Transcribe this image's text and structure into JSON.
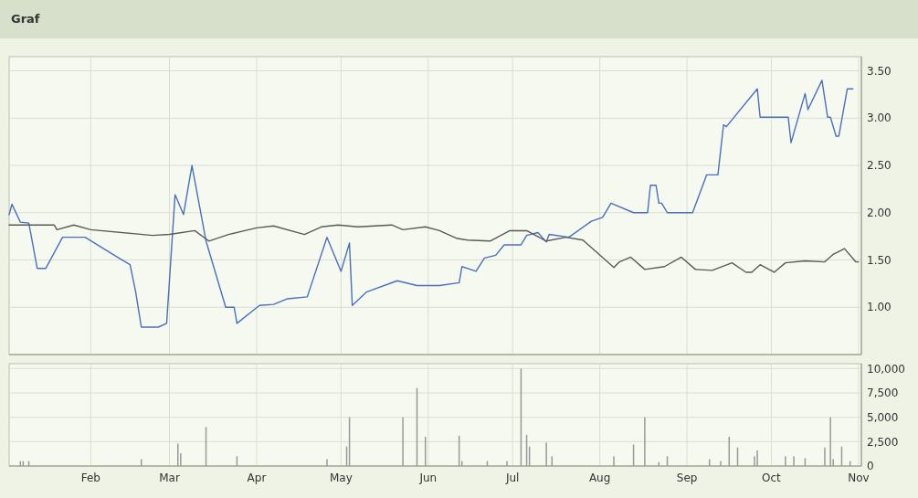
{
  "chart_data": [
    {
      "type": "line",
      "title": "Graf",
      "xlim": [
        "--01-03",
        "--11-02"
      ],
      "ylim": [
        0.5,
        3.65
      ],
      "xticks": [
        {
          "value": "--02-01",
          "label": null
        },
        {
          "value": "--03-01",
          "label": null
        },
        {
          "value": "--04-01",
          "label": null
        },
        {
          "value": "--05-01",
          "label": null
        },
        {
          "value": "--06-01",
          "label": null
        },
        {
          "value": "--07-01",
          "label": null
        },
        {
          "value": "--08-01",
          "label": null
        },
        {
          "value": "--09-01",
          "label": null
        },
        {
          "value": "--10-01",
          "label": null
        },
        {
          "value": "--11-01",
          "label": null
        }
      ],
      "yticks": [
        {
          "value": 1,
          "label": "1.00"
        },
        {
          "value": 1.5,
          "label": "1.50"
        },
        {
          "value": 2,
          "label": "2.00"
        },
        {
          "value": 2.5,
          "label": "2.50"
        },
        {
          "value": 3,
          "label": "3.00"
        },
        {
          "value": 3.5,
          "label": "3.50"
        }
      ],
      "tick_labels": "y",
      "grid": true,
      "series": [
        {
          "color": "#4a6fc0",
          "x": [
            "--01-03",
            "--01-04",
            "--01-07",
            "--01-10",
            "--01-13",
            "--01-16",
            "--01-22",
            "--01-30",
            "--02-11",
            "--02-15",
            "--02-17",
            "--02-19",
            "--02-25",
            "--02-28",
            "--03-03",
            "--03-06",
            "--03-09",
            "--03-14",
            "--03-21",
            "--03-24",
            "--03-25",
            "--04-02",
            "--04-07",
            "--04-12",
            "--04-19",
            "--04-26",
            "--05-01",
            "--05-04",
            "--05-05",
            "--05-10",
            "--05-21",
            "--05-28",
            "--06-05",
            "--06-12",
            "--06-13",
            "--06-18",
            "--06-21",
            "--06-25",
            "--06-28",
            "--07-04",
            "--07-06",
            "--07-10",
            "--07-13",
            "--07-14",
            "--07-21",
            "--07-29",
            "--08-02",
            "--08-05",
            "--08-13",
            "--08-18",
            "--08-19",
            "--08-21",
            "--08-22",
            "--08-23",
            "--08-25",
            "--09-03",
            "--09-08",
            "--09-12",
            "--09-14",
            "--09-15",
            "--09-26",
            "--09-27",
            "--10-07",
            "--10-08",
            "--10-13",
            "--10-14",
            "--10-19",
            "--10-21",
            "--10-22",
            "--10-24",
            "--10-25",
            "--10-28",
            "--10-30"
          ],
          "values": [
            1.98,
            2.09,
            1.9,
            1.89,
            1.41,
            1.41,
            1.74,
            1.74,
            1.52,
            1.45,
            1.16,
            0.79,
            0.79,
            0.83,
            2.19,
            1.98,
            2.5,
            1.7,
            1.0,
            1.0,
            0.83,
            1.02,
            1.03,
            1.09,
            1.11,
            1.74,
            1.38,
            1.68,
            1.02,
            1.16,
            1.28,
            1.23,
            1.23,
            1.26,
            1.43,
            1.38,
            1.52,
            1.55,
            1.66,
            1.66,
            1.76,
            1.79,
            1.69,
            1.77,
            1.74,
            1.91,
            1.95,
            2.1,
            2.0,
            2.0,
            2.29,
            2.29,
            2.1,
            2.1,
            2.0,
            2.0,
            2.4,
            2.4,
            2.93,
            2.91,
            3.31,
            3.01,
            3.01,
            2.74,
            3.26,
            3.09,
            3.4,
            3.01,
            3.01,
            2.81,
            2.81,
            3.31,
            3.31
          ]
        },
        {
          "color": "#5a5a5a",
          "x": [
            "--01-03",
            "--01-06",
            "--01-19",
            "--01-20",
            "--01-26",
            "--02-01",
            "--02-23",
            "--03-01",
            "--03-10",
            "--03-15",
            "--03-22",
            "--04-01",
            "--04-07",
            "--04-18",
            "--04-24",
            "--04-30",
            "--05-07",
            "--05-19",
            "--05-23",
            "--05-31",
            "--06-05",
            "--06-11",
            "--06-15",
            "--06-23",
            "--06-30",
            "--07-06",
            "--07-13",
            "--07-20",
            "--07-26",
            "--08-03",
            "--08-06",
            "--08-08",
            "--08-12",
            "--08-17",
            "--08-24",
            "--08-30",
            "--09-04",
            "--09-10",
            "--09-17",
            "--09-22",
            "--09-24",
            "--09-27",
            "--10-02",
            "--10-06",
            "--10-13",
            "--10-20",
            "--10-23",
            "--10-27",
            "--10-31",
            "--11-01"
          ],
          "values": [
            1.87,
            1.87,
            1.87,
            1.82,
            1.87,
            1.82,
            1.76,
            1.77,
            1.81,
            1.7,
            1.77,
            1.84,
            1.86,
            1.77,
            1.85,
            1.87,
            1.85,
            1.87,
            1.82,
            1.85,
            1.81,
            1.73,
            1.71,
            1.7,
            1.81,
            1.81,
            1.7,
            1.74,
            1.71,
            1.5,
            1.42,
            1.48,
            1.53,
            1.4,
            1.43,
            1.53,
            1.4,
            1.39,
            1.47,
            1.37,
            1.37,
            1.45,
            1.37,
            1.47,
            1.49,
            1.48,
            1.56,
            1.62,
            1.48,
            1.48
          ]
        }
      ]
    },
    {
      "type": "bar",
      "xlim": [
        "--01-03",
        "--11-02"
      ],
      "ylim": [
        0,
        10500
      ],
      "xticks": [
        {
          "value": "--02-01",
          "label": "Feb"
        },
        {
          "value": "--03-01",
          "label": "Mar"
        },
        {
          "value": "--04-01",
          "label": "Apr"
        },
        {
          "value": "--05-01",
          "label": "May"
        },
        {
          "value": "--06-01",
          "label": "Jun"
        },
        {
          "value": "--07-01",
          "label": "Jul"
        },
        {
          "value": "--08-01",
          "label": "Aug"
        },
        {
          "value": "--09-01",
          "label": "Sep"
        },
        {
          "value": "--10-01",
          "label": "Oct"
        },
        {
          "value": "--11-01",
          "label": "Nov"
        }
      ],
      "yticks": [
        0,
        {
          "value": 2500,
          "label": "2,500"
        },
        {
          "value": 5000,
          "label": "5,000"
        },
        {
          "value": 7500,
          "label": "7,500"
        },
        {
          "value": 10000,
          "label": "10,000"
        }
      ],
      "grid": true,
      "color": "#999999",
      "x": [
        "--01-07",
        "--01-08",
        "--01-10",
        "--02-19",
        "--03-04",
        "--03-05",
        "--03-14",
        "--03-25",
        "--04-26",
        "--05-03",
        "--05-04",
        "--05-23",
        "--05-28",
        "--05-31",
        "--06-12",
        "--06-13",
        "--06-22",
        "--06-29",
        "--07-04",
        "--07-06",
        "--07-07",
        "--07-13",
        "--07-15",
        "--08-06",
        "--08-13",
        "--08-17",
        "--08-22",
        "--08-25",
        "--09-09",
        "--09-13",
        "--09-16",
        "--09-19",
        "--09-25",
        "--09-26",
        "--10-06",
        "--10-09",
        "--10-13",
        "--10-20",
        "--10-22",
        "--10-23",
        "--10-26",
        "--10-29"
      ],
      "values": [
        500,
        500,
        500,
        700,
        2300,
        1300,
        4000,
        1000,
        700,
        2000,
        5000,
        5000,
        8000,
        3000,
        3100,
        500,
        500,
        500,
        10000,
        3200,
        2000,
        2400,
        1000,
        1000,
        2200,
        5000,
        400,
        1000,
        700,
        500,
        3000,
        1900,
        1000,
        1600,
        1000,
        1000,
        800,
        1900,
        5000,
        700,
        2000,
        500
      ]
    }
  ]
}
